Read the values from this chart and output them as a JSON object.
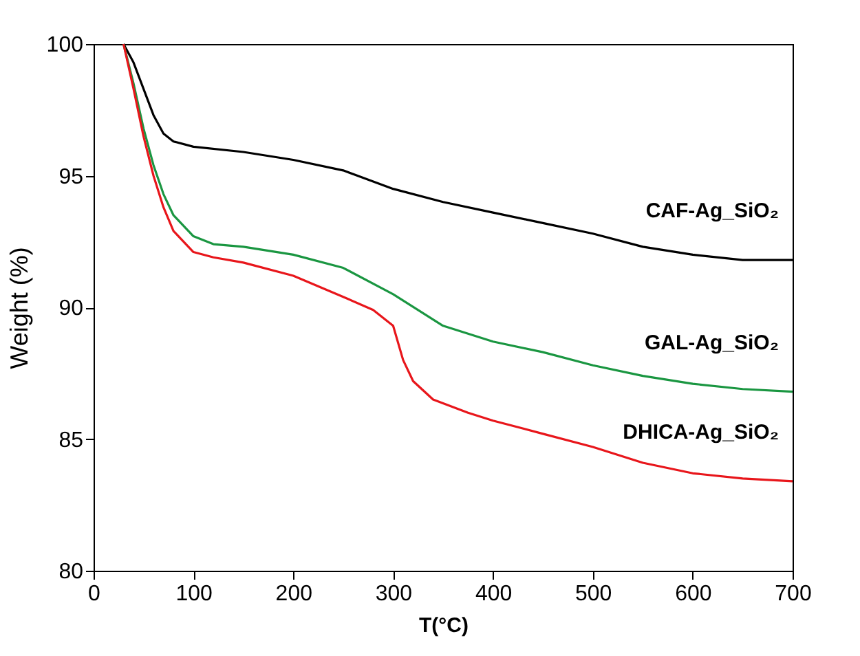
{
  "chart_data": {
    "type": "line",
    "xlabel": "T(°C)",
    "ylabel": "Weight  (%)",
    "xlim": [
      0,
      700
    ],
    "ylim": [
      80,
      100
    ],
    "xticks": [
      0,
      100,
      200,
      300,
      400,
      500,
      600,
      700
    ],
    "yticks": [
      80,
      85,
      90,
      95,
      100
    ],
    "grid": false,
    "line_style": "solid",
    "marker": "none",
    "series": [
      {
        "name": "CAF-Ag_SiO₂",
        "color": "#000000",
        "x": [
          30,
          40,
          50,
          60,
          70,
          80,
          100,
          150,
          200,
          250,
          300,
          350,
          400,
          450,
          500,
          550,
          600,
          650,
          700
        ],
        "values": [
          100,
          99.3,
          98.3,
          97.3,
          96.6,
          96.3,
          96.1,
          95.9,
          95.6,
          95.2,
          94.5,
          94.0,
          93.6,
          93.2,
          92.8,
          92.3,
          92.0,
          91.8,
          91.8
        ]
      },
      {
        "name": "GAL-Ag_SiO₂",
        "color": "#1a9641",
        "x": [
          30,
          40,
          50,
          60,
          70,
          80,
          100,
          120,
          150,
          200,
          250,
          300,
          350,
          400,
          450,
          500,
          550,
          600,
          650,
          700
        ],
        "values": [
          100,
          98.5,
          96.8,
          95.4,
          94.3,
          93.5,
          92.7,
          92.4,
          92.3,
          92.0,
          91.5,
          90.5,
          89.3,
          88.7,
          88.3,
          87.8,
          87.4,
          87.1,
          86.9,
          86.8
        ]
      },
      {
        "name": "DHICA-Ag_SiO₂",
        "color": "#e8161b",
        "x": [
          30,
          40,
          50,
          60,
          70,
          80,
          100,
          120,
          150,
          200,
          250,
          280,
          300,
          310,
          320,
          340,
          375,
          400,
          450,
          500,
          550,
          600,
          650,
          700
        ],
        "values": [
          100,
          98.3,
          96.5,
          95.0,
          93.8,
          92.9,
          92.1,
          91.9,
          91.7,
          91.2,
          90.4,
          89.9,
          89.3,
          88.0,
          87.2,
          86.5,
          86.0,
          85.7,
          85.2,
          84.7,
          84.1,
          83.7,
          83.5,
          83.4
        ]
      }
    ]
  }
}
